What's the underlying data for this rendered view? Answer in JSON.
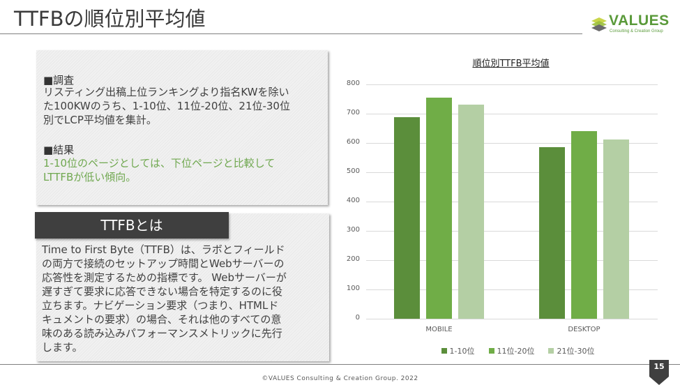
{
  "slide": {
    "title": "TTFBの順位別平均値",
    "page_number": "15",
    "copyright": "©VALUES Consulting & Creation Group. 2022"
  },
  "logo": {
    "name": "VALUES",
    "tagline": "Consulting & Creation Group",
    "icon": "layered-cube-logo-icon"
  },
  "survey_panel": {
    "survey_heading": "■調査",
    "survey_lines": [
      "リスティング出稿上位ランキングより指名KWを除い",
      "た100KWのうち、1-10位、11位-20位、21位-30位",
      "別でLCP平均値を集計。"
    ],
    "result_heading": "■結果",
    "result_lines": [
      "1-10位のページとしては、下位ページと比較して",
      "LTTFBが低い傾向。"
    ]
  },
  "ttfb_panel": {
    "label": "TTFBとは",
    "lines": [
      "Time to First Byte（TTFB）は、ラボとフィールド",
      "の両方で接続のセットアップ時間とWebサーバーの",
      "応答性を測定するための指標です。 Webサーバーが",
      "遅すぎて要求に応答できない場合を特定するのに役",
      "立ちます。ナビゲーション要求（つまり、HTMLド",
      "キュメントの要求）の場合、それは他のすべての意",
      "味のある読み込みパフォーマンスメトリックに先行",
      "します。"
    ]
  },
  "colors": {
    "series_1": "#5b8e3b",
    "series_2": "#70ad47",
    "series_3": "#b4cfa4",
    "accent_green": "#70a850",
    "label_dark": "#3f3f3f"
  },
  "chart_data": {
    "type": "bar",
    "title": "順位別TTFB平均値",
    "categories": [
      "MOBILE",
      "DESKTOP"
    ],
    "series": [
      {
        "name": "1-10位",
        "values": [
          688,
          586
        ]
      },
      {
        "name": "11位-20位",
        "values": [
          755,
          640
        ]
      },
      {
        "name": "21位-30位",
        "values": [
          731,
          612
        ]
      }
    ],
    "xlabel": "",
    "ylabel": "",
    "ylim": [
      0,
      800
    ],
    "yticks": [
      "800",
      "700",
      "600",
      "500",
      "400",
      "300",
      "200",
      "100",
      "0"
    ],
    "grid": true,
    "legend_position": "bottom"
  }
}
